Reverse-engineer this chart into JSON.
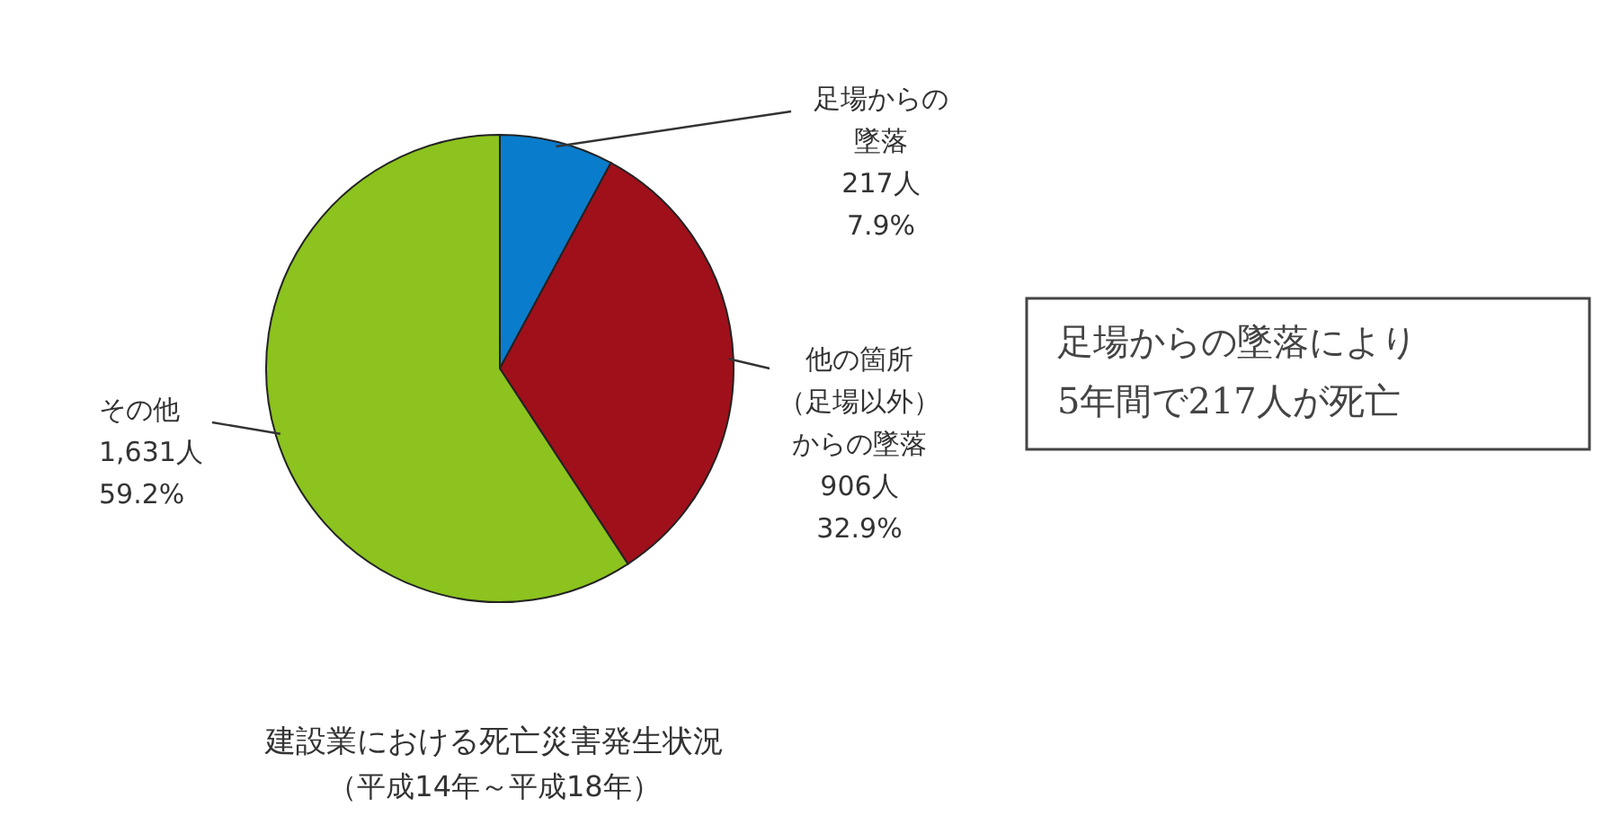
{
  "chart_data": {
    "type": "pie",
    "title": "建設業における死亡災害発生状況",
    "subtitle": "（平成14年～平成18年）",
    "categories": [
      "足場からの墜落",
      "他の箇所（足場以外）からの墜落",
      "その他"
    ],
    "values": [
      217,
      906,
      1631
    ],
    "colors": [
      "#0a7ccc",
      "#a0101a",
      "#8cc31e"
    ],
    "value_labels": [
      "217人\n7.9%",
      "906人\n32.9%",
      "1,631人\n59.2%"
    ],
    "annotations": [
      "足場からの墜落により5年間で217人が死亡"
    ]
  }
}
